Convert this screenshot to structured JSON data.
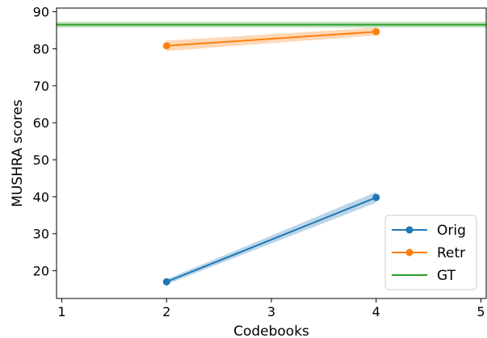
{
  "chart_data": {
    "type": "line",
    "xlabel": "Codebooks",
    "ylabel": "MUSHRA scores",
    "xlim": [
      0.95,
      5.05
    ],
    "ylim": [
      12.5,
      91
    ],
    "xticks": [
      1,
      2,
      3,
      4,
      5
    ],
    "yticks": [
      20,
      30,
      40,
      50,
      60,
      70,
      80,
      90
    ],
    "grid": false,
    "legend_position": "bottom-right",
    "series": [
      {
        "name": "Orig",
        "color": "#1f77b4",
        "marker": "circle",
        "x": [
          2,
          4
        ],
        "y": [
          17.0,
          39.8
        ],
        "band_low": [
          16.3,
          38.4
        ],
        "band_high": [
          17.7,
          41.3
        ]
      },
      {
        "name": "Retr",
        "color": "#ff7f0e",
        "marker": "circle",
        "x": [
          2,
          4
        ],
        "y": [
          80.8,
          84.6
        ],
        "band_low": [
          79.4,
          83.6
        ],
        "band_high": [
          82.2,
          85.7
        ]
      },
      {
        "name": "GT",
        "color": "#2ca02c",
        "marker": "none",
        "hline": true,
        "y": 86.5,
        "band_low": 85.7,
        "band_high": 87.3
      }
    ]
  }
}
